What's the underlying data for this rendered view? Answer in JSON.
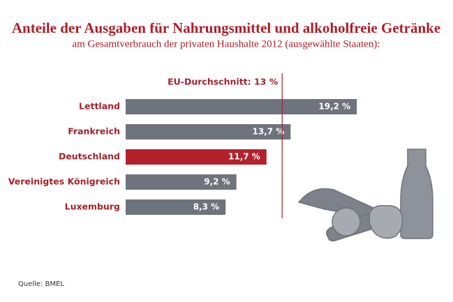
{
  "chart_data": {
    "type": "bar",
    "orientation": "horizontal",
    "title": "Anteile der Ausgaben für Nahrungsmittel und alkoholfreie Getränke",
    "subtitle": "am Gesamtverbrauch der privaten Haushalte 2012 (ausgewählte Staaten):",
    "categories": [
      "Lettland",
      "Frankreich",
      "Deutschland",
      "Vereinigtes Königreich",
      "Luxemburg"
    ],
    "values": [
      19.2,
      13.7,
      11.7,
      9.2,
      8.3
    ],
    "value_labels": [
      "19,2 %",
      "13,7 %",
      "11,7 %",
      "9,2 %",
      "8,3 %"
    ],
    "colors": [
      "#6e737c",
      "#6e737c",
      "#b3212b",
      "#6e737c",
      "#6e737c"
    ],
    "reference_line": {
      "value": 13,
      "label": "EU-Durchschnitt: 13 %",
      "color": "#a8202a"
    },
    "source": "Quelle: BMEL"
  }
}
